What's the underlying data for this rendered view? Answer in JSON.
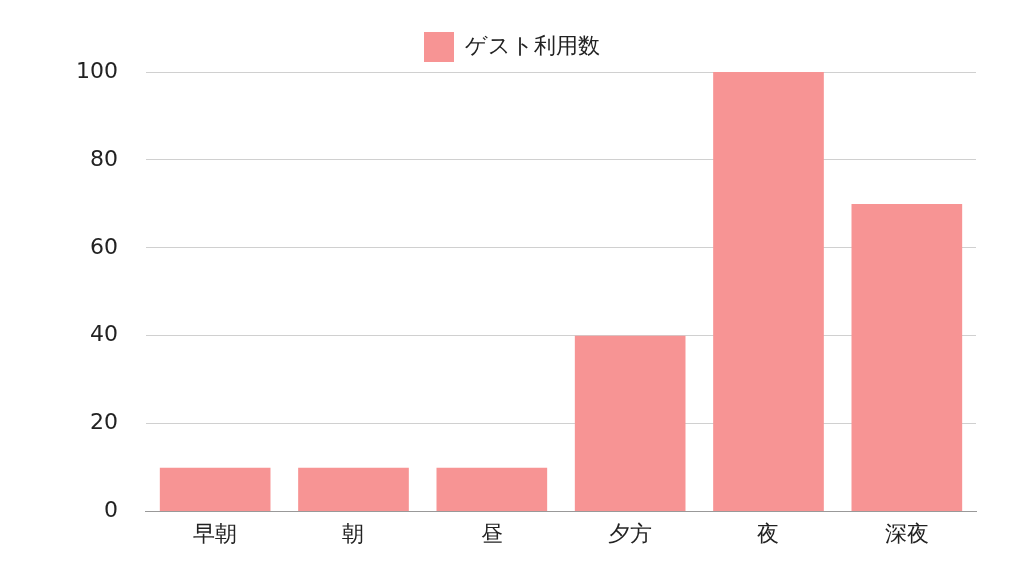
{
  "chart_data": {
    "type": "bar",
    "categories": [
      "早朝",
      "朝",
      "昼",
      "夕方",
      "夜",
      "深夜"
    ],
    "series": [
      {
        "name": "ゲスト利用数",
        "color": "#f79494",
        "values": [
          10,
          10,
          10,
          40,
          100,
          70
        ]
      }
    ],
    "ylim": [
      0,
      100
    ],
    "yticks": [
      0,
      20,
      40,
      60,
      80,
      100
    ],
    "grid": "y",
    "legend": "top"
  }
}
